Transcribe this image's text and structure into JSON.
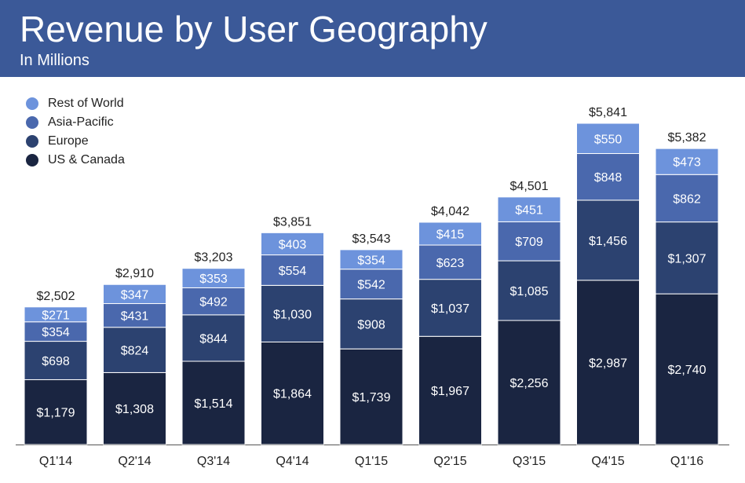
{
  "header": {
    "title": "Revenue by User Geography",
    "subtitle": "In Millions"
  },
  "colors": {
    "header_bg": "#3b5998",
    "rest_of_world": "#6d93dc",
    "asia_pacific": "#4a68ad",
    "europe": "#2c4270",
    "us_canada": "#1a2541"
  },
  "chart_data": {
    "type": "bar",
    "stacked": true,
    "title": "Revenue by User Geography",
    "subtitle": "In Millions",
    "categories": [
      "Q1'14",
      "Q2'14",
      "Q3'14",
      "Q4'14",
      "Q1'15",
      "Q2'15",
      "Q3'15",
      "Q4'15",
      "Q1'16"
    ],
    "series": [
      {
        "name": "US & Canada",
        "color": "#1a2541",
        "values": [
          1179,
          1308,
          1514,
          1864,
          1739,
          1967,
          2256,
          2987,
          2740
        ],
        "labels": [
          "$1,179",
          "$1,308",
          "$1,514",
          "$1,864",
          "$1,739",
          "$1,967",
          "$2,256",
          "$2,987",
          "$2,740"
        ]
      },
      {
        "name": "Europe",
        "color": "#2c4270",
        "values": [
          698,
          824,
          844,
          1030,
          908,
          1037,
          1085,
          1456,
          1307
        ],
        "labels": [
          "$698",
          "$824",
          "$844",
          "$1,030",
          "$908",
          "$1,037",
          "$1,085",
          "$1,456",
          "$1,307"
        ]
      },
      {
        "name": "Asia-Pacific",
        "color": "#4a68ad",
        "values": [
          354,
          431,
          492,
          554,
          542,
          623,
          709,
          848,
          862
        ],
        "labels": [
          "$354",
          "$431",
          "$492",
          "$554",
          "$542",
          "$623",
          "$709",
          "$848",
          "$862"
        ]
      },
      {
        "name": "Rest of World",
        "color": "#6d93dc",
        "values": [
          271,
          347,
          353,
          403,
          354,
          415,
          451,
          550,
          473
        ],
        "labels": [
          "$271",
          "$347",
          "$353",
          "$403",
          "$354",
          "$415",
          "$451",
          "$550",
          "$473"
        ]
      }
    ],
    "totals": [
      2502,
      2910,
      3203,
      3851,
      3543,
      4042,
      4501,
      5841,
      5382
    ],
    "total_labels": [
      "$2,502",
      "$2,910",
      "$3,203",
      "$3,851",
      "$3,543",
      "$4,042",
      "$4,501",
      "$5,841",
      "$5,382"
    ],
    "legend": {
      "position": "top-left",
      "order": [
        "Rest of World",
        "Asia-Pacific",
        "Europe",
        "US & Canada"
      ]
    },
    "ylim": [
      0,
      5841
    ],
    "grid": false
  }
}
